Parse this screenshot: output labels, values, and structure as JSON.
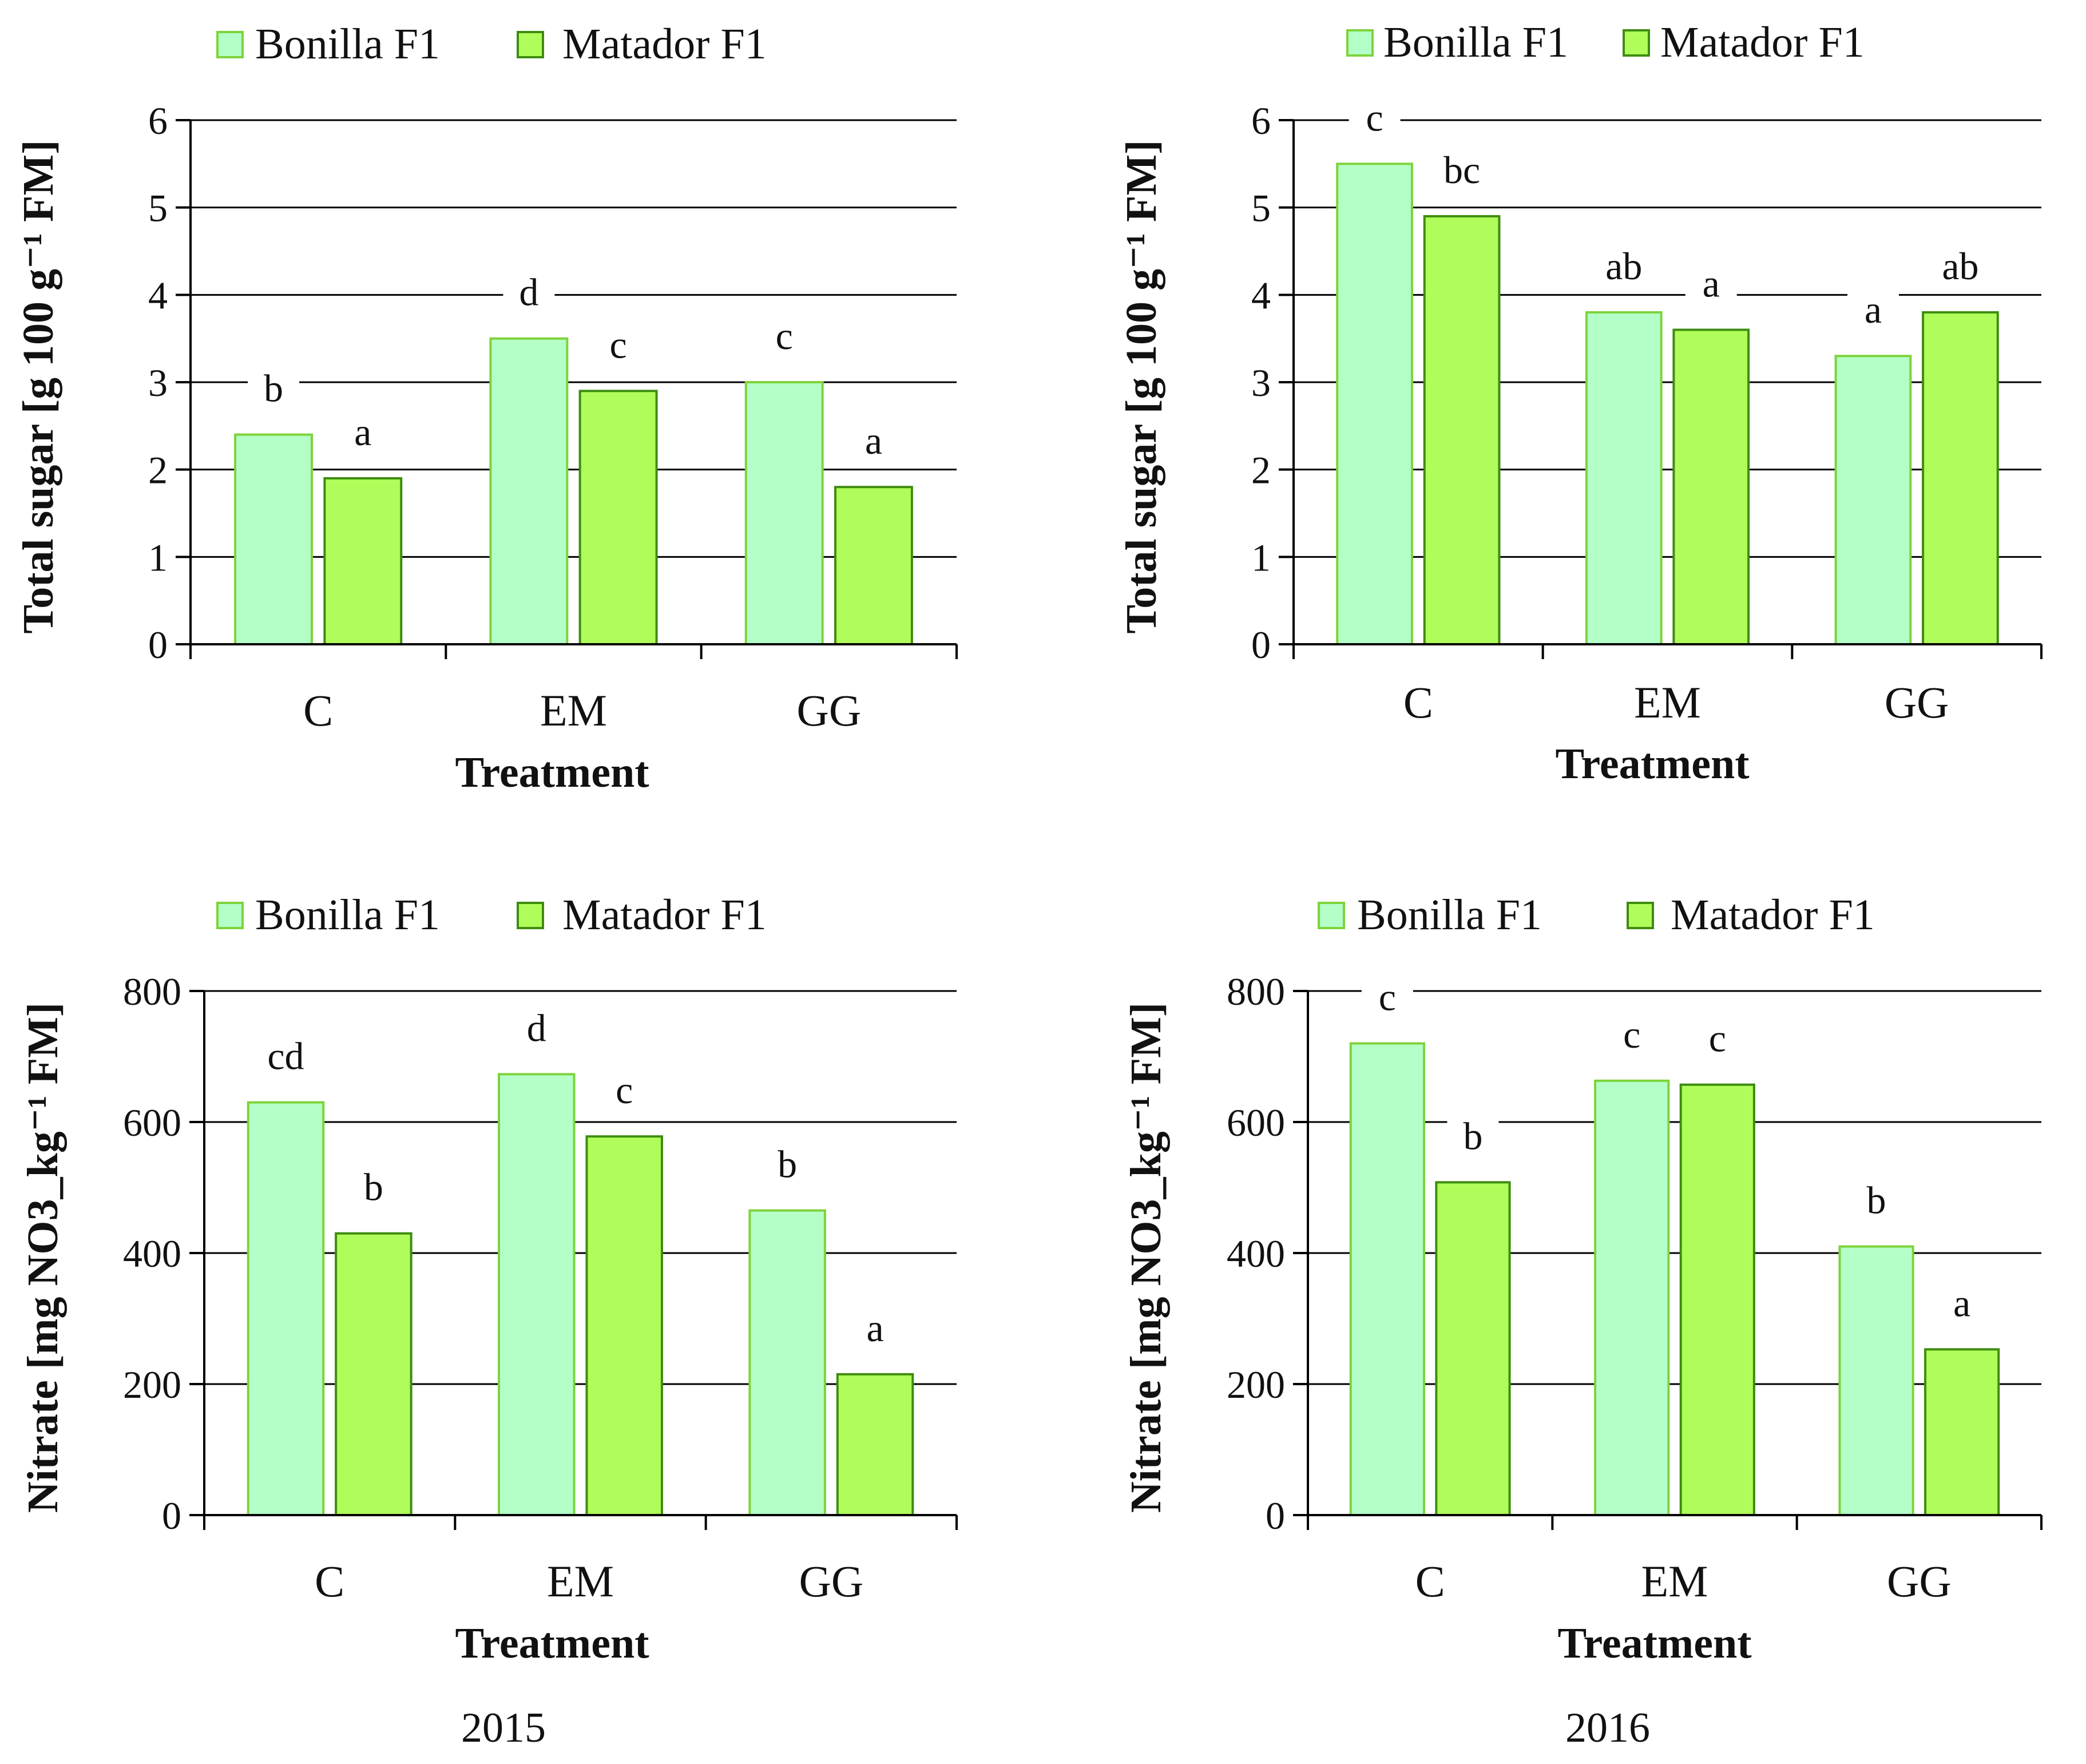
{
  "colors": {
    "bonilla_fill": "#b4fec8",
    "bonilla_stroke": "#7dd33a",
    "matador_fill": "#b0fc5a",
    "matador_stroke": "#3e8c10",
    "grid": "#000000",
    "axis": "#000000"
  },
  "years": [
    "2015",
    "2016"
  ],
  "chart_data": [
    {
      "type": "bar",
      "panel": "top-left",
      "title": "",
      "xlabel": "Treatment",
      "ylabel": "Total sugar [g 100 g⁻¹ FM]",
      "categories": [
        "C",
        "EM",
        "GG"
      ],
      "ylim": [
        0,
        6
      ],
      "yticks": [
        "0",
        "1",
        "2",
        "3",
        "4",
        "5",
        "6"
      ],
      "grid": true,
      "legend": "top",
      "series": [
        {
          "name": "Bonilla F1",
          "values": [
            2.4,
            3.5,
            3.0
          ],
          "labels": [
            "b",
            "d",
            "c"
          ]
        },
        {
          "name": "Matador F1",
          "values": [
            1.9,
            2.9,
            1.8
          ],
          "labels": [
            "a",
            "c",
            "a"
          ]
        }
      ]
    },
    {
      "type": "bar",
      "panel": "top-right",
      "title": "",
      "xlabel": "Treatment",
      "ylabel": "Total sugar [g 100 g⁻¹ FM]",
      "categories": [
        "C",
        "EM",
        "GG"
      ],
      "ylim": [
        0,
        6
      ],
      "yticks": [
        "0",
        "1",
        "2",
        "3",
        "4",
        "5",
        "6"
      ],
      "grid": true,
      "legend": "top",
      "series": [
        {
          "name": "Bonilla F1",
          "values": [
            5.5,
            3.8,
            3.3
          ],
          "labels": [
            "c",
            "ab",
            "a"
          ]
        },
        {
          "name": "Matador F1",
          "values": [
            4.9,
            3.6,
            3.8
          ],
          "labels": [
            "bc",
            "a",
            "ab"
          ]
        }
      ]
    },
    {
      "type": "bar",
      "panel": "bottom-left",
      "title": "",
      "xlabel": "Treatment",
      "ylabel": "Nitrate [mg NO3_kg⁻¹ FM]",
      "categories": [
        "C",
        "EM",
        "GG"
      ],
      "ylim": [
        0,
        800
      ],
      "yticks": [
        "0",
        "200",
        "400",
        "600",
        "800"
      ],
      "grid": true,
      "legend": "top",
      "series": [
        {
          "name": "Bonilla F1",
          "values": [
            630,
            673,
            465
          ],
          "labels": [
            "cd",
            "d",
            "b"
          ]
        },
        {
          "name": "Matador F1",
          "values": [
            430,
            578,
            215
          ],
          "labels": [
            "b",
            "c",
            "a"
          ]
        }
      ]
    },
    {
      "type": "bar",
      "panel": "bottom-right",
      "title": "",
      "xlabel": "Treatment",
      "ylabel": "Nitrate [mg NO3_kg⁻¹ FM]",
      "categories": [
        "C",
        "EM",
        "GG"
      ],
      "ylim": [
        0,
        800
      ],
      "yticks": [
        "0",
        "200",
        "400",
        "600",
        "800"
      ],
      "grid": true,
      "legend": "top",
      "series": [
        {
          "name": "Bonilla F1",
          "values": [
            720,
            663,
            410
          ],
          "labels": [
            "c",
            "c",
            "b"
          ]
        },
        {
          "name": "Matador F1",
          "values": [
            508,
            657,
            253
          ],
          "labels": [
            "b",
            "c",
            "a"
          ]
        }
      ]
    }
  ]
}
